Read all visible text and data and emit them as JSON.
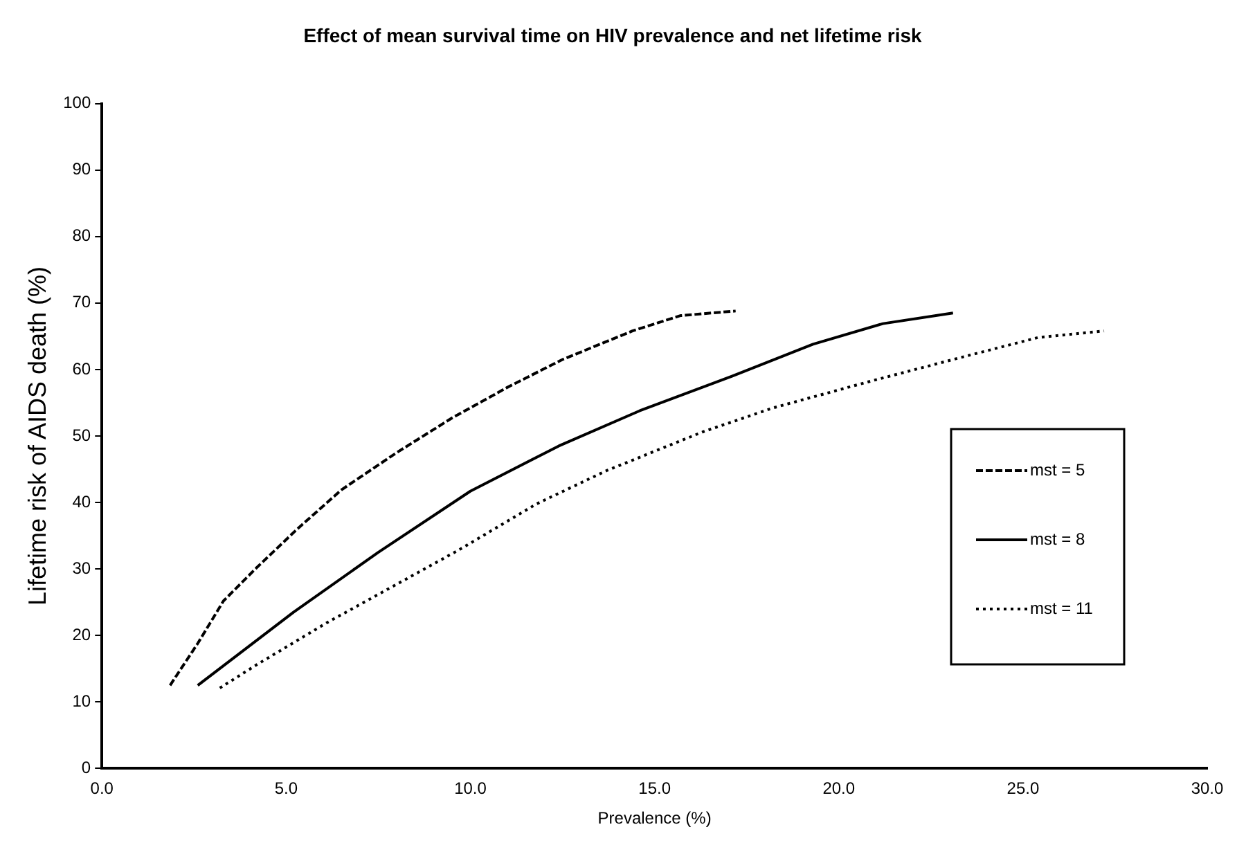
{
  "chart_data": {
    "type": "line",
    "title": "Effect of mean survival time on HIV prevalence and net lifetime risk",
    "xlabel": "Prevalence (%)",
    "ylabel": "Lifetime risk of AIDS death (%)",
    "xlim": [
      0,
      30
    ],
    "xticks": [
      {
        "value": 0,
        "label": "0.0"
      },
      {
        "value": 5,
        "label": "5.0"
      },
      {
        "value": 10,
        "label": "10.0"
      },
      {
        "value": 15,
        "label": "15.0"
      },
      {
        "value": 20,
        "label": "20.0"
      },
      {
        "value": 25,
        "label": "25.0"
      },
      {
        "value": 30,
        "label": "30.0"
      }
    ],
    "ylim": [
      0,
      100
    ],
    "yticks": [
      0,
      10,
      20,
      30,
      40,
      50,
      60,
      70,
      80,
      90,
      100
    ],
    "grid": false,
    "legend": "right",
    "marker": "none",
    "series": [
      {
        "name": "mst = 5",
        "color": "#000000",
        "line_style": "dashed",
        "x": [
          1.85,
          2.6,
          3.3,
          4.2,
          5.3,
          6.5,
          8.0,
          9.5,
          11.0,
          12.5,
          14.4,
          15.7,
          17.2
        ],
        "values": [
          12.5,
          18.8,
          25.2,
          30.2,
          36,
          41.9,
          47.5,
          52.7,
          57.3,
          61.5,
          65.8,
          68.1,
          68.8
        ]
      },
      {
        "name": "mst = 8",
        "color": "#000000",
        "line_style": "solid",
        "x": [
          2.6,
          5.2,
          7.5,
          10.0,
          12.4,
          14.6,
          17.1,
          19.3,
          21.2,
          23.1
        ],
        "values": [
          12.5,
          23.5,
          32.5,
          41.7,
          48.5,
          53.8,
          59,
          63.8,
          66.9,
          68.5
        ]
      },
      {
        "name": "mst = 11",
        "color": "#000000",
        "line_style": "dotted",
        "x": [
          3.2,
          4.2,
          6.1,
          8.0,
          9.7,
          11.8,
          13.7,
          16.3,
          18.2,
          20.9,
          23.1,
          25.4,
          27.2
        ],
        "values": [
          12.1,
          15.6,
          21.9,
          27.7,
          32.9,
          39.8,
          44.8,
          50.6,
          54.2,
          58.3,
          61.5,
          64.8,
          65.8
        ]
      }
    ]
  }
}
